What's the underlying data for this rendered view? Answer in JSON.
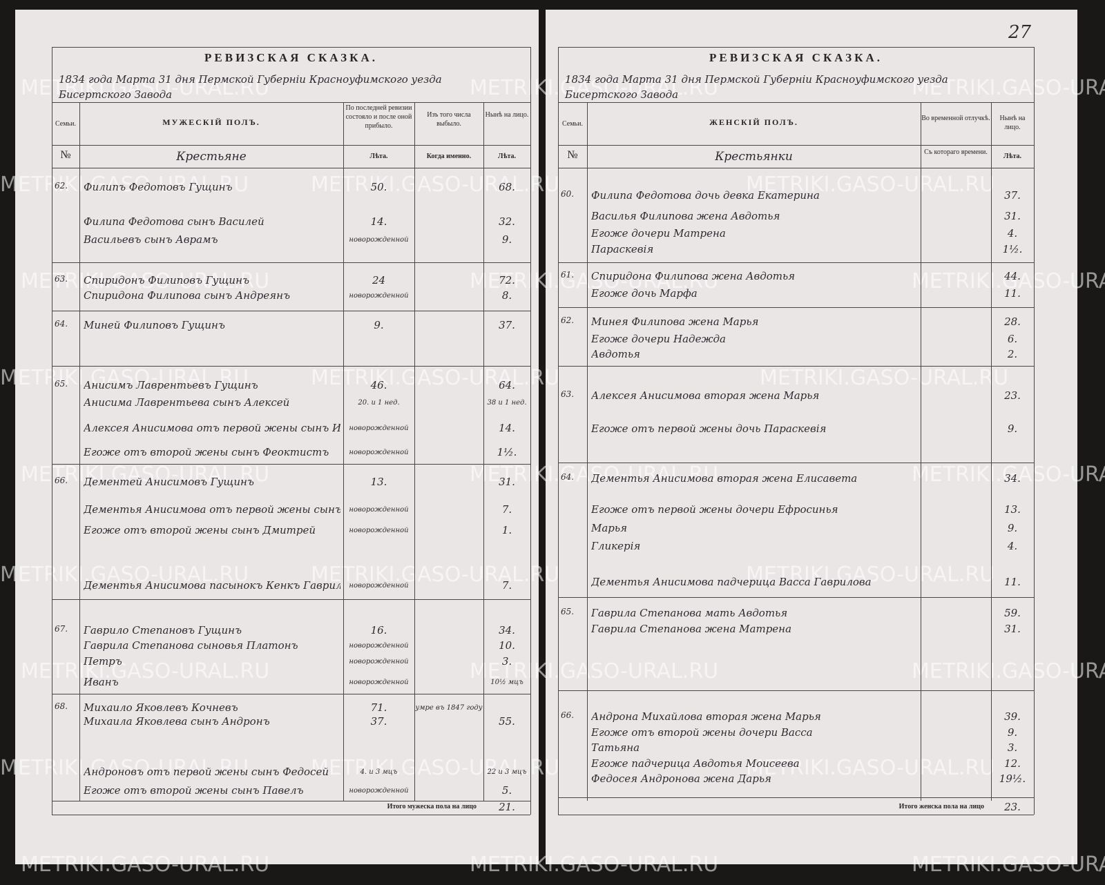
{
  "watermark": "METRIKI.GASO-URAL.RU",
  "left": {
    "title": "РЕВИЗСКАЯ СКАЗКА.",
    "line1": "1834 года Марта 31 дня Пермской Губерніи Красноуфимского уезда",
    "line2": "Бисертского Завода",
    "headers": {
      "family": "Семьи.",
      "sex": "МУЖЕСКІЙ ПОЛЪ.",
      "prev": "По последней ревизии состояло и после оной прибыло.",
      "left": "Изъ того числа выбыло.",
      "now": "Нынѣ на лицо.",
      "no": "№",
      "class": "Крестьяне",
      "prev_years": "Лѣта.",
      "left_when": "Когда именно.",
      "now_years": "Лѣта."
    },
    "families": [
      {
        "no": "62.",
        "people": [
          {
            "name": "Филипъ Федотовъ Гущинъ",
            "prev": "50.",
            "now": "68."
          },
          {
            "name": "Филипа Федотова сынъ Василей",
            "prev": "14.",
            "now": "32."
          },
          {
            "name": "Васильевъ сынъ Аврамъ",
            "prev": "новорожденной",
            "now": "9."
          }
        ]
      },
      {
        "no": "63.",
        "people": [
          {
            "name": "Спиридонъ Филиповъ Гущинъ",
            "prev": "24",
            "now": "72."
          },
          {
            "name": "Спиридона Филипова сынъ Андреянъ",
            "prev": "новорожденной",
            "now": "8."
          }
        ]
      },
      {
        "no": "64.",
        "people": [
          {
            "name": "Миней Филиповъ Гущинъ",
            "prev": "9.",
            "now": "37."
          }
        ]
      },
      {
        "no": "65.",
        "people": [
          {
            "name": "Анисимъ Лаврентьевъ Гущинъ",
            "prev": "46.",
            "now": "64."
          },
          {
            "name": "Анисима Лаврентьева сынъ Алексей",
            "prev": "20. и 1 нед.",
            "now": "38 и 1 нед."
          },
          {
            "name": "Алексея Анисимова отъ первой жены сынъ Иванъ",
            "prev": "новорожденной",
            "now": "14."
          },
          {
            "name": "Егоже отъ второй жены сынъ Феоктистъ",
            "prev": "новорожденной",
            "now": "1½."
          }
        ]
      },
      {
        "no": "66.",
        "people": [
          {
            "name": "Дементей Анисимовъ Гущинъ",
            "prev": "13.",
            "now": "31."
          },
          {
            "name": "Дементья Анисимова отъ первой жены сынъ Никита",
            "prev": "новорожденной",
            "now": "7."
          },
          {
            "name": "Егоже отъ второй жены сынъ Дмитрей",
            "prev": "новорожденной",
            "now": "1."
          },
          {
            "name": "Дементья Анисимова пасынокъ Кенкъ Гавриловъ",
            "prev": "новорожденной",
            "now": "7."
          }
        ]
      },
      {
        "no": "67.",
        "people": [
          {
            "name": "Гаврило Степановъ Гущинъ",
            "prev": "16.",
            "now": "34."
          },
          {
            "name": "Гаврила Степанова сыновья Платонъ",
            "prev": "новорожденной",
            "now": "10."
          },
          {
            "name": "Петръ",
            "prev": "новорожденной",
            "now": "3."
          },
          {
            "name": "Иванъ",
            "prev": "новорожденной",
            "now": "10½ мцъ"
          }
        ]
      },
      {
        "no": "68.",
        "people": [
          {
            "name": "Михаило Яковлевъ Кочневъ",
            "prev": "71.",
            "left": "умре въ 1847 году"
          },
          {
            "name": "Михаила Яковлева сынъ Андронъ",
            "prev": "37.",
            "now": "55."
          },
          {
            "name": "Андроновъ отъ первой жены сынъ Федосей",
            "prev": "4. и 3 мцъ",
            "now": "22 и 3 мцъ"
          },
          {
            "name": "Егоже отъ второй жены сынъ Павелъ",
            "prev": "новорожденной",
            "now": "5."
          }
        ]
      }
    ],
    "total_label": "Итого мужеска пола на лицо",
    "total": "21."
  },
  "right": {
    "page_no": "27",
    "title": "РЕВИЗСКАЯ СКАЗКА.",
    "line1": "1834 года Марта 31 дня Пермской Губерніи Красноуфимского уезда",
    "line2": "Бисертского Завода",
    "headers": {
      "family": "Семьи.",
      "sex": "ЖЕНСКІЙ ПОЛЪ.",
      "absent": "Во временной отлучкѣ.",
      "now": "Нынѣ на лицо.",
      "no": "№",
      "class": "Крестьянки",
      "absent_since": "Съ котораго времени.",
      "now_years": "Лѣта."
    },
    "families": [
      {
        "no": "60.",
        "people": [
          {
            "name": "Филипа Федотова дочь девка Екатерина",
            "now": "37."
          },
          {
            "name": "Василья Филипова жена Авдотья",
            "now": "31."
          },
          {
            "name": "Егоже дочери Матрена",
            "now": "4."
          },
          {
            "name": "Параскевія",
            "now": "1½."
          }
        ]
      },
      {
        "no": "61.",
        "people": [
          {
            "name": "Спиридона Филипова жена Авдотья",
            "now": "44."
          },
          {
            "name": "Егоже дочь Марфа",
            "now": "11."
          }
        ]
      },
      {
        "no": "62.",
        "people": [
          {
            "name": "Минея Филипова жена Марья",
            "now": "28."
          },
          {
            "name": "Егоже дочери Надежда",
            "now": "6."
          },
          {
            "name": "Авдотья",
            "now": "2."
          }
        ]
      },
      {
        "no": "63.",
        "people": [
          {
            "name": "Алексея Анисимова вторая жена Марья",
            "now": "23."
          },
          {
            "name": "Егоже отъ первой жены дочь Параскевія",
            "now": "9."
          }
        ]
      },
      {
        "no": "64.",
        "people": [
          {
            "name": "Дементья Анисимова вторая жена Елисавета",
            "now": "34."
          },
          {
            "name": "Егоже отъ первой жены дочери Ефросинья",
            "now": "13."
          },
          {
            "name": "Марья",
            "now": "9."
          },
          {
            "name": "Гликерія",
            "now": "4."
          },
          {
            "name": "Дементья Анисимова падчерица Васса Гаврилова",
            "now": "11."
          }
        ]
      },
      {
        "no": "65.",
        "people": [
          {
            "name": "Гаврила Степанова мать Авдотья",
            "now": "59."
          },
          {
            "name": "Гаврила Степанова жена Матрена",
            "now": "31."
          }
        ]
      },
      {
        "no": "66.",
        "people": [
          {
            "name": "Андрона Михайлова вторая жена Марья",
            "now": "39."
          },
          {
            "name": "Егоже отъ второй жены дочери Васса",
            "now": "9."
          },
          {
            "name": "Татьяна",
            "now": "3."
          },
          {
            "name": "Егоже падчерица Авдотья Моисеева",
            "now": "12."
          },
          {
            "name": "Федосея Андронова жена Дарья",
            "now": "19½."
          }
        ]
      }
    ],
    "total_label": "Итого женска пола на лицо",
    "total": "23."
  }
}
